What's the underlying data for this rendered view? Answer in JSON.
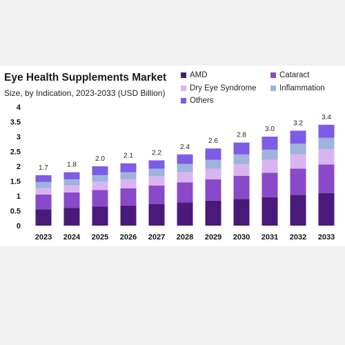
{
  "header": {
    "title": "Eye Health Supplements Market",
    "subtitle": "Size, by Indication, 2023-2033 (USD Billion)"
  },
  "legend": {
    "items": [
      {
        "label": "AMD",
        "color": "#4a1a7a"
      },
      {
        "label": "Cataract",
        "color": "#8a49c8"
      },
      {
        "label": "Dry Eye Syndrome",
        "color": "#d8b5f0"
      },
      {
        "label": "Inflammation",
        "color": "#9fb3dc"
      },
      {
        "label": "Others",
        "color": "#7d5ce6"
      }
    ]
  },
  "chart_data": {
    "type": "bar",
    "stacked": true,
    "title": "Eye Health Supplements Market",
    "subtitle": "Size, by Indication, 2023-2033 (USD Billion)",
    "categories": [
      "2023",
      "2024",
      "2025",
      "2026",
      "2027",
      "2028",
      "2029",
      "2030",
      "2031",
      "2032",
      "2033"
    ],
    "totals": [
      "1.7",
      "1.8",
      "2.0",
      "2.1",
      "2.2",
      "2.4",
      "2.6",
      "2.8",
      "3.0",
      "3.2",
      "3.4"
    ],
    "series": [
      {
        "name": "AMD",
        "color": "#4a1a7a",
        "values": [
          0.55,
          0.6,
          0.64,
          0.68,
          0.73,
          0.78,
          0.84,
          0.9,
          0.96,
          1.04,
          1.1
        ]
      },
      {
        "name": "Cataract",
        "color": "#8a49c8",
        "values": [
          0.5,
          0.52,
          0.56,
          0.58,
          0.62,
          0.68,
          0.72,
          0.78,
          0.82,
          0.88,
          0.96
        ]
      },
      {
        "name": "Dry Eye Syndrome",
        "color": "#d8b5f0",
        "values": [
          0.22,
          0.24,
          0.28,
          0.3,
          0.32,
          0.34,
          0.36,
          0.4,
          0.44,
          0.48,
          0.52
        ]
      },
      {
        "name": "Inflammation",
        "color": "#9fb3dc",
        "values": [
          0.2,
          0.2,
          0.22,
          0.24,
          0.25,
          0.28,
          0.3,
          0.32,
          0.34,
          0.36,
          0.38
        ]
      },
      {
        "name": "Others",
        "color": "#7d5ce6",
        "values": [
          0.23,
          0.24,
          0.3,
          0.3,
          0.28,
          0.32,
          0.38,
          0.4,
          0.44,
          0.44,
          0.44
        ]
      }
    ],
    "ylim": [
      0,
      4
    ],
    "yticks": [
      "0",
      "0.5",
      "1",
      "1.5",
      "2",
      "2.5",
      "3",
      "3.5",
      "4"
    ],
    "grid": false,
    "legend_position": "top-right"
  }
}
